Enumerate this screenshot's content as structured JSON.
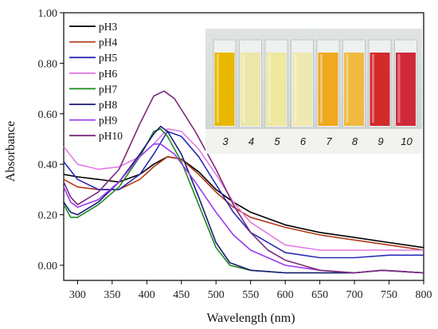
{
  "chart_data": {
    "type": "line",
    "xlabel": "Wavelength (nm)",
    "ylabel": "Absorbance",
    "xlim": [
      280,
      800
    ],
    "ylim": [
      -0.06,
      1.0
    ],
    "x_ticks": [
      300,
      350,
      400,
      450,
      500,
      550,
      600,
      650,
      700,
      750,
      800
    ],
    "x_tick_labels": [
      "300",
      "350",
      "400",
      "450",
      "500",
      "550",
      "600",
      "650",
      "700",
      "750",
      "800"
    ],
    "y_ticks": [
      0.0,
      0.2,
      0.4,
      0.6,
      0.8,
      1.0
    ],
    "y_tick_labels": [
      "0.00",
      "0.20",
      "0.40",
      "0.60",
      "0.80",
      "1.00"
    ],
    "legend_position": "top-left",
    "series": [
      {
        "name": "pH3",
        "color": "#000000",
        "points": [
          [
            280,
            0.36
          ],
          [
            300,
            0.35
          ],
          [
            330,
            0.34
          ],
          [
            360,
            0.33
          ],
          [
            390,
            0.36
          ],
          [
            410,
            0.4
          ],
          [
            430,
            0.43
          ],
          [
            450,
            0.42
          ],
          [
            475,
            0.37
          ],
          [
            500,
            0.3
          ],
          [
            525,
            0.25
          ],
          [
            550,
            0.21
          ],
          [
            600,
            0.16
          ],
          [
            650,
            0.13
          ],
          [
            700,
            0.11
          ],
          [
            750,
            0.09
          ],
          [
            800,
            0.07
          ]
        ]
      },
      {
        "name": "pH4",
        "color": "#b03a1a",
        "points": [
          [
            280,
            0.34
          ],
          [
            300,
            0.31
          ],
          [
            330,
            0.3
          ],
          [
            360,
            0.3
          ],
          [
            390,
            0.34
          ],
          [
            410,
            0.39
          ],
          [
            430,
            0.43
          ],
          [
            450,
            0.42
          ],
          [
            475,
            0.36
          ],
          [
            500,
            0.29
          ],
          [
            525,
            0.23
          ],
          [
            550,
            0.19
          ],
          [
            600,
            0.15
          ],
          [
            650,
            0.12
          ],
          [
            700,
            0.1
          ],
          [
            750,
            0.08
          ],
          [
            800,
            0.06
          ]
        ]
      },
      {
        "name": "pH5",
        "color": "#2a2ab8",
        "points": [
          [
            280,
            0.41
          ],
          [
            300,
            0.34
          ],
          [
            330,
            0.3
          ],
          [
            360,
            0.3
          ],
          [
            390,
            0.36
          ],
          [
            410,
            0.44
          ],
          [
            430,
            0.53
          ],
          [
            450,
            0.51
          ],
          [
            475,
            0.43
          ],
          [
            500,
            0.32
          ],
          [
            525,
            0.21
          ],
          [
            550,
            0.13
          ],
          [
            600,
            0.05
          ],
          [
            650,
            0.03
          ],
          [
            700,
            0.03
          ],
          [
            750,
            0.04
          ],
          [
            800,
            0.04
          ]
        ]
      },
      {
        "name": "pH6",
        "color": "#e37be3",
        "points": [
          [
            280,
            0.47
          ],
          [
            300,
            0.4
          ],
          [
            330,
            0.38
          ],
          [
            360,
            0.39
          ],
          [
            390,
            0.43
          ],
          [
            410,
            0.48
          ],
          [
            430,
            0.54
          ],
          [
            450,
            0.53
          ],
          [
            475,
            0.46
          ],
          [
            500,
            0.36
          ],
          [
            525,
            0.25
          ],
          [
            550,
            0.17
          ],
          [
            600,
            0.08
          ],
          [
            650,
            0.06
          ],
          [
            700,
            0.06
          ],
          [
            750,
            0.06
          ],
          [
            800,
            0.06
          ]
        ]
      },
      {
        "name": "pH7",
        "color": "#1e8a1e",
        "points": [
          [
            280,
            0.24
          ],
          [
            290,
            0.19
          ],
          [
            300,
            0.19
          ],
          [
            330,
            0.24
          ],
          [
            360,
            0.31
          ],
          [
            390,
            0.43
          ],
          [
            410,
            0.53
          ],
          [
            420,
            0.54
          ],
          [
            430,
            0.51
          ],
          [
            450,
            0.41
          ],
          [
            475,
            0.24
          ],
          [
            500,
            0.07
          ],
          [
            520,
            0.0
          ],
          [
            550,
            -0.02
          ],
          [
            600,
            -0.03
          ],
          [
            650,
            -0.03
          ],
          [
            700,
            -0.03
          ],
          [
            740,
            -0.02
          ],
          [
            800,
            -0.03
          ]
        ]
      },
      {
        "name": "pH8",
        "color": "#1a1a7a",
        "points": [
          [
            280,
            0.25
          ],
          [
            290,
            0.21
          ],
          [
            300,
            0.2
          ],
          [
            330,
            0.25
          ],
          [
            360,
            0.33
          ],
          [
            390,
            0.44
          ],
          [
            410,
            0.52
          ],
          [
            420,
            0.55
          ],
          [
            430,
            0.53
          ],
          [
            450,
            0.44
          ],
          [
            475,
            0.27
          ],
          [
            500,
            0.09
          ],
          [
            520,
            0.01
          ],
          [
            550,
            -0.02
          ],
          [
            600,
            -0.03
          ],
          [
            650,
            -0.03
          ],
          [
            700,
            -0.03
          ],
          [
            740,
            -0.02
          ],
          [
            800,
            -0.03
          ]
        ]
      },
      {
        "name": "pH9",
        "color": "#9b3bef",
        "points": [
          [
            280,
            0.31
          ],
          [
            290,
            0.25
          ],
          [
            300,
            0.23
          ],
          [
            330,
            0.26
          ],
          [
            360,
            0.33
          ],
          [
            390,
            0.43
          ],
          [
            410,
            0.48
          ],
          [
            420,
            0.48
          ],
          [
            440,
            0.44
          ],
          [
            470,
            0.33
          ],
          [
            500,
            0.21
          ],
          [
            525,
            0.12
          ],
          [
            550,
            0.06
          ],
          [
            600,
            0.0
          ],
          [
            650,
            -0.02
          ],
          [
            700,
            -0.03
          ],
          [
            740,
            -0.02
          ],
          [
            800,
            -0.03
          ]
        ]
      },
      {
        "name": "pH10",
        "color": "#7a2a7a",
        "points": [
          [
            280,
            0.33
          ],
          [
            290,
            0.27
          ],
          [
            300,
            0.24
          ],
          [
            330,
            0.29
          ],
          [
            360,
            0.38
          ],
          [
            390,
            0.56
          ],
          [
            410,
            0.67
          ],
          [
            425,
            0.69
          ],
          [
            440,
            0.66
          ],
          [
            470,
            0.53
          ],
          [
            500,
            0.38
          ],
          [
            525,
            0.24
          ],
          [
            550,
            0.13
          ],
          [
            575,
            0.06
          ],
          [
            600,
            0.02
          ],
          [
            650,
            -0.02
          ],
          [
            700,
            -0.03
          ],
          [
            740,
            -0.02
          ],
          [
            800,
            -0.03
          ]
        ]
      }
    ]
  },
  "inset": {
    "labels": [
      "3",
      "4",
      "5",
      "6",
      "7",
      "8",
      "9",
      "10"
    ],
    "liquid_colors": [
      "#e8b800",
      "#ece7a8",
      "#eee8a0",
      "#efe9b0",
      "#f0a820",
      "#f0ba40",
      "#d42a2a",
      "#d02a3a"
    ]
  }
}
